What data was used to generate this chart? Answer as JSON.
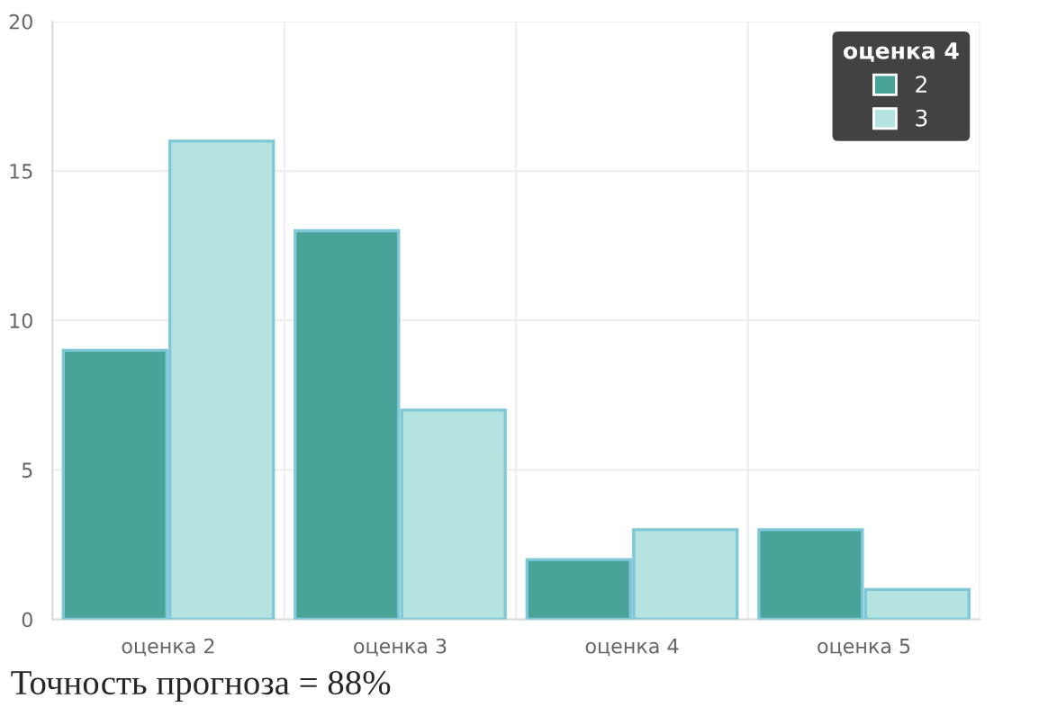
{
  "chart_data": {
    "type": "bar",
    "categories": [
      "оценка 2",
      "оценка 3",
      "оценка 4",
      "оценка 5"
    ],
    "series": [
      {
        "name": "2",
        "color": "#4aa398",
        "values": [
          9,
          13,
          2,
          3
        ]
      },
      {
        "name": "3",
        "color": "#b5e3df",
        "values": [
          16,
          7,
          3,
          1
        ]
      }
    ],
    "legend_title": "оценка 4",
    "legend": "top right",
    "ylim": [
      0,
      20
    ],
    "yticks": [
      0,
      5,
      10,
      15,
      20
    ],
    "grid": true,
    "annotations": [
      "Точность прогноза = 88%"
    ]
  }
}
